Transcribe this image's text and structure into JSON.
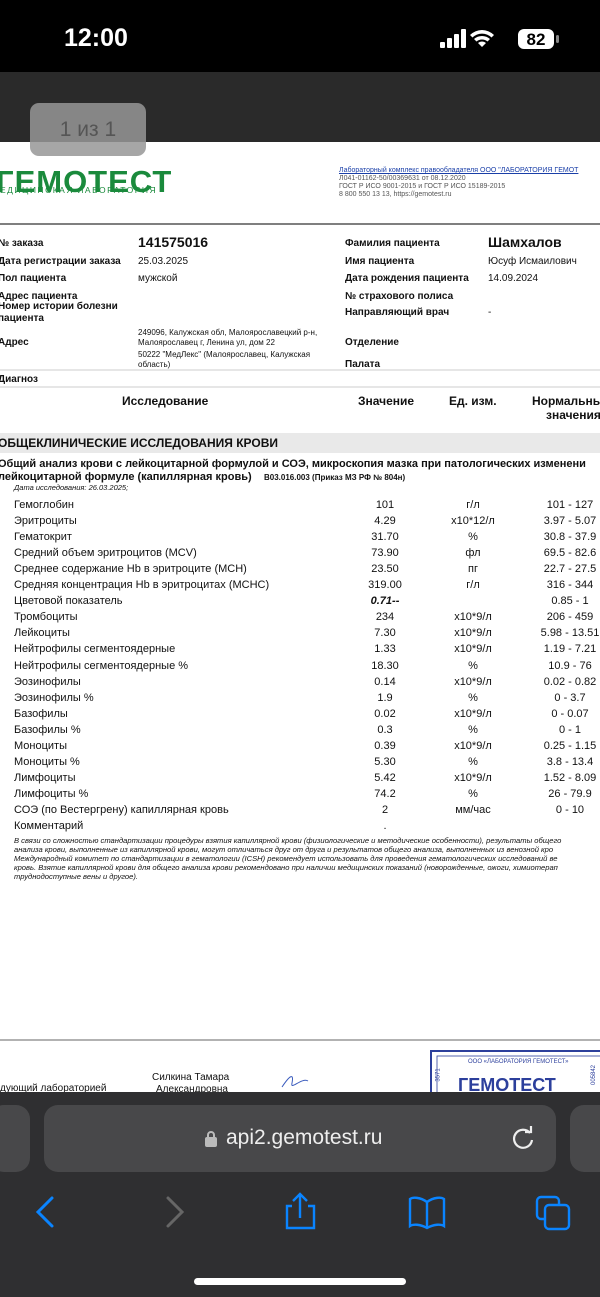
{
  "status_bar": {
    "time": "12:00",
    "battery": "82"
  },
  "viewer": {
    "page_indicator": "1 из 1"
  },
  "document": {
    "logo": {
      "name": "ГЕМОТЕСТ",
      "tagline": "ЕДИЦИНСКАЯ ЛАБОРАТОРИЯ"
    },
    "header_info": [
      "Лабораторный комплекс правообладателя ООО \"ЛАБОРАТОРИЯ ГЕМОТ",
      "Л041-01162-50/00369631 от 08.12.2020",
      "ГОСТ Р ИСО 9001-2015 и ГОСТ Р ИСО 15189-2015",
      "8 800 550 13 13, https://gemotest.ru"
    ],
    "order_info": [
      {
        "left": [
          "№ заказа",
          "141575016"
        ],
        "right": [
          "Фамилия пациента",
          "Шамхалов"
        ]
      },
      {
        "left": [
          "Дата регистрации заказа",
          "25.03.2025"
        ],
        "right": [
          "Имя пациента",
          "Юсуф Исмаилович"
        ]
      },
      {
        "left": [
          "Пол пациента",
          "мужской"
        ],
        "right": [
          "Дата рождения пациента",
          "14.09.2024"
        ]
      },
      {
        "left": [
          "Адрес пациента"
        ],
        "right": [
          "№ страхового полиса"
        ]
      },
      {
        "left": [
          "Номер истории болезни пациента"
        ],
        "right": [
          "Направляющий врач",
          "-"
        ]
      },
      {
        "left": [
          "Адрес",
          "249096, Калужская обл, Малоярославецкий р-н, Малоярославец г, Ленина ул, дом 22"
        ],
        "right": [
          "Отделение"
        ]
      },
      {
        "left": [
          "50222 \"МедЛекс\" (Малоярославец, Калужская область)"
        ],
        "right": [
          "Палата"
        ]
      }
    ],
    "diagnosis": "Диагноз",
    "columns": {
      "study": "Исследование",
      "value": "Значение",
      "unit": "Ед. изм.",
      "norm_lines": [
        "Нормальны",
        "значения"
      ]
    },
    "section": "ОБЩЕКЛИНИЧЕСКИЕ ИССЛЕДОВАНИЯ КРОВИ",
    "test": {
      "title_lines": [
        "Общий анализ крови с лейкоцитарной формулой и СОЭ, микроскопия мазка при патологических изменени",
        "лейкоцитарной формуле (капиллярная кровь)"
      ],
      "code": "B03.016.003 (Приказ МЗ РФ № 804н)",
      "date": "Дата исследования: 26.03.2025;"
    },
    "results": [
      [
        "Гемоглобин",
        "101",
        "г/л",
        "101 - 127"
      ],
      [
        "Эритроциты",
        "4.29",
        "x10*12/л",
        "3.97 - 5.07"
      ],
      [
        "Гематокрит",
        "31.70",
        "%",
        "30.8 - 37.9"
      ],
      [
        "Средний объем эритроцитов (MCV)",
        "73.90",
        "фл",
        "69.5 - 82.6"
      ],
      [
        "Среднее содержание Hb в эритроците (MCH)",
        "23.50",
        "пг",
        "22.7 - 27.5"
      ],
      [
        "Средняя концентрация Hb в эритроцитах (MCHC)",
        "319.00",
        "г/л",
        "316 - 344"
      ],
      [
        "Цветовой показатель",
        "0.71--",
        "0.85 - 1"
      ],
      [
        "Тромбоциты",
        "234",
        "x10*9/л",
        "206 - 459"
      ],
      [
        "Лейкоциты",
        "7.30",
        "x10*9/л",
        "5.98 - 13.51"
      ],
      [
        "Нейтрофилы сегментоядерные",
        "1.33",
        "x10*9/л",
        "1.19 - 7.21"
      ],
      [
        "Нейтрофилы сегментоядерные %",
        "18.30",
        "%",
        "10.9 - 76"
      ],
      [
        "Эозинофилы",
        "0.14",
        "x10*9/л",
        "0.02 - 0.82"
      ],
      [
        "Эозинофилы %",
        "1.9",
        "%",
        "0 - 3.7"
      ],
      [
        "Базофилы",
        "0.02",
        "x10*9/л",
        "0 - 0.07"
      ],
      [
        "Базофилы %",
        "0.3",
        "%",
        "0 - 1"
      ],
      [
        "Моноциты",
        "0.39",
        "x10*9/л",
        "0.25 - 1.15"
      ],
      [
        "Моноциты %",
        "5.30",
        "%",
        "3.8 - 13.4"
      ],
      [
        "Лимфоциты",
        "5.42",
        "x10*9/л",
        "1.52 - 8.09"
      ],
      [
        "Лимфоциты %",
        "74.2",
        "%",
        "26 - 79.9"
      ],
      [
        "СОЭ (по Вестергрену) капиллярная кровь",
        "2",
        "мм/час",
        "0 - 10"
      ],
      [
        "Комментарий",
        "."
      ]
    ],
    "highlighted_rows": [
      6
    ],
    "footnote": [
      "В связи со сложностью стандартизации процедуры взятия капиллярной крови (физиологические и методические особенности), результаты общего",
      "анализа крови, выполненные из капиллярной крови, могут отличаться друг от друга и результатов общего анализа, выполненных из венозной кро",
      "Международный комитет по стандартизации в гематологии (ICSH) рекомендует использовать для проведения гематологических исследований ве",
      "кровь. Взятие капиллярной крови для общего анализа крови рекомендовано при наличии медицинских показаний (новорожденные, ожоги, химиотерап",
      "труднодоступные вены и другое)."
    ],
    "signature": {
      "role": "дующий лабораторией",
      "name_lines": [
        "Силкина Тамара",
        "Александровна"
      ]
    },
    "stamp": {
      "org": "ООО «ЛАБОРАТОРИЯ ГЕМОТЕСТ»",
      "name": "ГЕМОТЕСТ",
      "side_left": "3571",
      "side_right": "005842"
    }
  },
  "browser": {
    "url": "api2.gemotest.ru"
  }
}
